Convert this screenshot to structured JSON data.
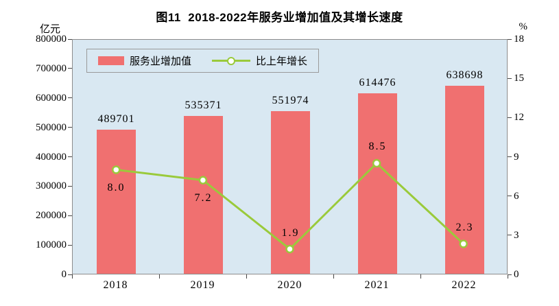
{
  "chart_data": {
    "type": "bar",
    "subtype": "bar+line combo, dual axis",
    "title": "图11  2018-2022年服务业增加值及其增长速度",
    "categories": [
      "2018",
      "2019",
      "2020",
      "2021",
      "2022"
    ],
    "series": [
      {
        "name": "服务业增加值",
        "type": "bar",
        "axis": "left",
        "values": [
          489701,
          535371,
          551974,
          614476,
          638698
        ],
        "labels": [
          "489701",
          "535371",
          "551974",
          "614476",
          "638698"
        ]
      },
      {
        "name": "比上年增长",
        "type": "line",
        "axis": "right",
        "values": [
          8.0,
          7.2,
          1.9,
          8.5,
          2.3
        ],
        "labels": [
          "8.0",
          "7.2",
          "1.9",
          "8.5",
          "2.3"
        ],
        "label_placements": [
          "below",
          "below",
          "above",
          "above",
          "above"
        ]
      }
    ],
    "left_axis": {
      "unit": "亿元",
      "min": 0,
      "max": 800000,
      "tick_labels": [
        "800000",
        "700000",
        "600000",
        "500000",
        "400000",
        "300000",
        "200000",
        "100000",
        "0"
      ]
    },
    "right_axis": {
      "unit": "%",
      "min": 0,
      "max": 18,
      "tick_labels": [
        "18",
        "15",
        "12",
        "9",
        "6",
        "3",
        "0"
      ]
    },
    "legend_position": "top-left-inside",
    "grid": false,
    "colors": {
      "bar": "#f07070",
      "line": "#9aca3b",
      "marker_fill": "#ffffff",
      "plot_bg": "#d9e8f2",
      "axis_border": "#8c8c8c",
      "text": "#000000"
    }
  }
}
